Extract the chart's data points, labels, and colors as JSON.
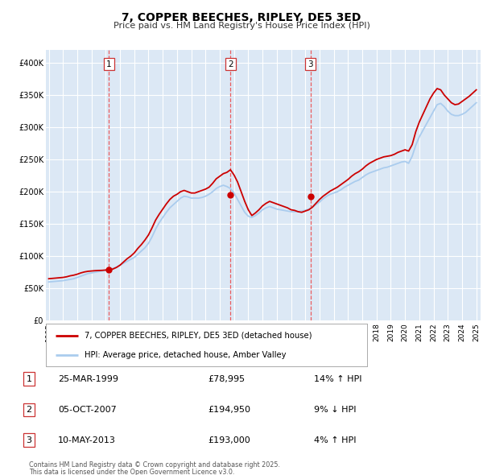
{
  "title": "7, COPPER BEECHES, RIPLEY, DE5 3ED",
  "subtitle": "Price paid vs. HM Land Registry's House Price Index (HPI)",
  "hpi_legend": "HPI: Average price, detached house, Amber Valley",
  "price_legend": "7, COPPER BEECHES, RIPLEY, DE5 3ED (detached house)",
  "ylim": [
    0,
    420000
  ],
  "yticks": [
    0,
    50000,
    100000,
    150000,
    200000,
    250000,
    300000,
    350000,
    400000
  ],
  "ytick_labels": [
    "£0",
    "£50K",
    "£100K",
    "£150K",
    "£200K",
    "£250K",
    "£300K",
    "£350K",
    "£400K"
  ],
  "plot_bg_color": "#dce8f5",
  "grid_color": "#ffffff",
  "price_color": "#cc0000",
  "hpi_color": "#aaccee",
  "vline_color": "#ee4444",
  "annotations": [
    {
      "label": "1",
      "x": 1999.23,
      "price": 78995
    },
    {
      "label": "2",
      "x": 2007.76,
      "price": 194950
    },
    {
      "label": "3",
      "x": 2013.36,
      "price": 193000
    }
  ],
  "footer_line1": "Contains HM Land Registry data © Crown copyright and database right 2025.",
  "footer_line2": "This data is licensed under the Open Government Licence v3.0.",
  "table_rows": [
    {
      "num": "1",
      "date": "25-MAR-1999",
      "price": "£78,995",
      "pct": "14% ↑ HPI"
    },
    {
      "num": "2",
      "date": "05-OCT-2007",
      "price": "£194,950",
      "pct": "9% ↓ HPI"
    },
    {
      "num": "3",
      "date": "10-MAY-2013",
      "price": "£193,000",
      "pct": "4% ↑ HPI"
    }
  ],
  "hpi_data_values": [
    60000,
    60500,
    61000,
    61500,
    62000,
    63000,
    64000,
    65000,
    67000,
    69000,
    71000,
    73000,
    74000,
    75000,
    76000,
    77000,
    78000,
    79000,
    81000,
    83000,
    86000,
    89000,
    92000,
    95000,
    98000,
    103000,
    108000,
    113000,
    120000,
    130000,
    142000,
    152000,
    160000,
    168000,
    175000,
    180000,
    185000,
    190000,
    193000,
    192000,
    190000,
    190000,
    190000,
    191000,
    193000,
    196000,
    200000,
    205000,
    208000,
    210000,
    208000,
    205000,
    198000,
    188000,
    178000,
    168000,
    162000,
    160000,
    163000,
    167000,
    172000,
    175000,
    177000,
    175000,
    173000,
    172000,
    171000,
    170000,
    169000,
    169000,
    169000,
    170000,
    171000,
    173000,
    176000,
    180000,
    184000,
    189000,
    193000,
    196000,
    198000,
    200000,
    203000,
    207000,
    210000,
    213000,
    216000,
    218000,
    222000,
    226000,
    229000,
    231000,
    233000,
    235000,
    237000,
    238000,
    240000,
    242000,
    244000,
    246000,
    247000,
    244000,
    255000,
    272000,
    285000,
    295000,
    305000,
    315000,
    325000,
    335000,
    337000,
    332000,
    325000,
    320000,
    318000,
    318000,
    320000,
    323000,
    328000,
    333000,
    338000
  ],
  "price_data_values": [
    65000,
    65500,
    66000,
    66500,
    67000,
    68000,
    69500,
    70500,
    72000,
    74000,
    75500,
    76500,
    77000,
    77500,
    77800,
    78000,
    78500,
    78995,
    80000,
    82500,
    86000,
    91000,
    96000,
    100000,
    105000,
    112000,
    118000,
    125000,
    133000,
    144000,
    156000,
    165000,
    173000,
    181000,
    188000,
    193000,
    196000,
    200000,
    202000,
    200000,
    198000,
    198000,
    200000,
    202000,
    204000,
    207000,
    213000,
    220000,
    224000,
    228000,
    230000,
    234000,
    226000,
    215000,
    200000,
    185000,
    172000,
    163000,
    167000,
    172000,
    178000,
    182000,
    185000,
    183000,
    181000,
    179000,
    177000,
    175000,
    172000,
    171000,
    169000,
    168000,
    170000,
    172000,
    176000,
    182000,
    188000,
    193000,
    197000,
    201000,
    204000,
    207000,
    211000,
    215000,
    219000,
    224000,
    228000,
    231000,
    235000,
    240000,
    244000,
    247000,
    250000,
    252000,
    254000,
    255000,
    256000,
    258000,
    261000,
    263000,
    265000,
    263000,
    273000,
    293000,
    308000,
    320000,
    332000,
    344000,
    353000,
    360000,
    358000,
    350000,
    344000,
    338000,
    335000,
    336000,
    340000,
    344000,
    348000,
    353000,
    358000
  ]
}
